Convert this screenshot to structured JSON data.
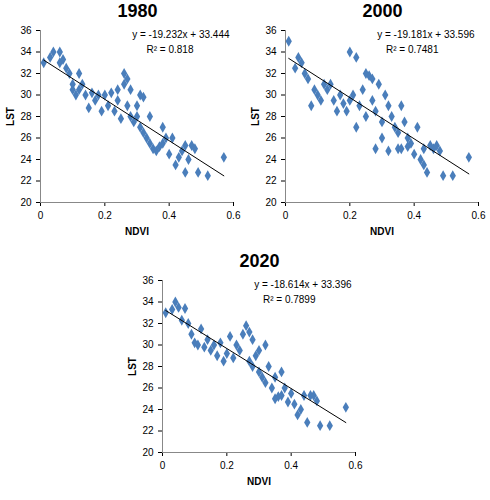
{
  "chart_data": [
    {
      "type": "scatter",
      "title": "1980",
      "x_label": "NDVI",
      "y_label": "LST",
      "color": "#4a7ebb",
      "marker": "diamond",
      "xlim": [
        0,
        0.6
      ],
      "xticks": [
        0,
        0.2,
        0.4,
        0.6
      ],
      "ylim": [
        20,
        36
      ],
      "yticks": [
        20,
        22,
        24,
        26,
        28,
        30,
        32,
        34,
        36
      ],
      "grid": false,
      "x": [
        0.01,
        0.03,
        0.04,
        0.06,
        0.06,
        0.07,
        0.08,
        0.09,
        0.1,
        0.1,
        0.11,
        0.12,
        0.12,
        0.13,
        0.14,
        0.15,
        0.16,
        0.17,
        0.18,
        0.19,
        0.2,
        0.21,
        0.22,
        0.23,
        0.24,
        0.24,
        0.25,
        0.26,
        0.26,
        0.27,
        0.27,
        0.28,
        0.28,
        0.29,
        0.3,
        0.3,
        0.31,
        0.31,
        0.32,
        0.32,
        0.33,
        0.34,
        0.34,
        0.35,
        0.36,
        0.37,
        0.38,
        0.38,
        0.39,
        0.4,
        0.41,
        0.42,
        0.43,
        0.44,
        0.45,
        0.45,
        0.46,
        0.47,
        0.48,
        0.49,
        0.52,
        0.57
      ],
      "values": [
        33,
        33.5,
        34,
        34,
        33,
        33.3,
        32.5,
        32,
        31,
        30.5,
        30,
        32,
        30.5,
        31,
        30,
        28.8,
        30.2,
        29.5,
        30,
        28.5,
        30,
        29,
        30.2,
        28.5,
        29.5,
        30.5,
        27.8,
        31,
        32,
        31.5,
        29,
        28,
        30.5,
        27.5,
        29,
        28,
        30,
        27,
        29.8,
        26.5,
        26,
        28,
        25.5,
        25,
        24.8,
        25.2,
        27,
        25.5,
        26,
        24.5,
        26,
        23.5,
        24.2,
        24.8,
        25.3,
        22.8,
        24,
        25.3,
        25,
        22.8,
        22.5,
        24.2
      ],
      "trendline": {
        "equation": "y = -19.232x + 33.444",
        "r_squared_label": "R² = 0.818",
        "slope": -19.232,
        "intercept": 33.444,
        "color": "#000000"
      }
    },
    {
      "type": "scatter",
      "title": "2000",
      "x_label": "NDVI",
      "y_label": "LST",
      "color": "#4a7ebb",
      "marker": "diamond",
      "xlim": [
        0,
        0.6
      ],
      "xticks": [
        0,
        0.2,
        0.4,
        0.6
      ],
      "ylim": [
        20,
        36
      ],
      "yticks": [
        20,
        22,
        24,
        26,
        28,
        30,
        32,
        34,
        36
      ],
      "grid": false,
      "x": [
        0.01,
        0.03,
        0.04,
        0.05,
        0.06,
        0.07,
        0.08,
        0.09,
        0.1,
        0.11,
        0.12,
        0.13,
        0.14,
        0.15,
        0.16,
        0.17,
        0.18,
        0.19,
        0.2,
        0.2,
        0.21,
        0.22,
        0.22,
        0.23,
        0.24,
        0.25,
        0.25,
        0.26,
        0.27,
        0.27,
        0.28,
        0.28,
        0.29,
        0.3,
        0.3,
        0.31,
        0.32,
        0.32,
        0.33,
        0.34,
        0.35,
        0.35,
        0.36,
        0.36,
        0.37,
        0.38,
        0.38,
        0.39,
        0.4,
        0.41,
        0.42,
        0.43,
        0.43,
        0.44,
        0.45,
        0.46,
        0.47,
        0.48,
        0.49,
        0.52,
        0.57
      ],
      "values": [
        35,
        32.5,
        33.5,
        33,
        32,
        31.5,
        29,
        30.5,
        30,
        29.5,
        31,
        30.5,
        31,
        29.5,
        28.5,
        30,
        29.2,
        28.5,
        34,
        29.5,
        30,
        27,
        33.5,
        29,
        30.5,
        32,
        28,
        31.8,
        31.5,
        29.5,
        28.5,
        25,
        31,
        27.5,
        26,
        30,
        29,
        24.8,
        28,
        27,
        26.5,
        25,
        29,
        25,
        27.5,
        26,
        25.2,
        25.5,
        24.5,
        27,
        24,
        23.5,
        25,
        22.8,
        25.3,
        25,
        25.3,
        24.8,
        22.5,
        22.5,
        24.2
      ],
      "trendline": {
        "equation": "y = -19.181x + 33.596",
        "r_squared_label": "R² = 0.7481",
        "slope": -19.181,
        "intercept": 33.596,
        "color": "#000000"
      }
    },
    {
      "type": "scatter",
      "title": "2020",
      "x_label": "NDVI",
      "y_label": "LST",
      "color": "#4a7ebb",
      "marker": "diamond",
      "xlim": [
        0,
        0.6
      ],
      "xticks": [
        0,
        0.2,
        0.4,
        0.6
      ],
      "ylim": [
        20,
        36
      ],
      "yticks": [
        20,
        22,
        24,
        26,
        28,
        30,
        32,
        34,
        36
      ],
      "grid": false,
      "x": [
        0.01,
        0.03,
        0.04,
        0.05,
        0.06,
        0.07,
        0.08,
        0.09,
        0.1,
        0.11,
        0.12,
        0.13,
        0.14,
        0.15,
        0.16,
        0.17,
        0.18,
        0.19,
        0.2,
        0.21,
        0.22,
        0.23,
        0.24,
        0.25,
        0.26,
        0.27,
        0.27,
        0.28,
        0.28,
        0.29,
        0.3,
        0.3,
        0.31,
        0.32,
        0.32,
        0.33,
        0.34,
        0.35,
        0.35,
        0.36,
        0.37,
        0.37,
        0.38,
        0.39,
        0.4,
        0.41,
        0.42,
        0.43,
        0.44,
        0.45,
        0.46,
        0.47,
        0.48,
        0.49,
        0.52,
        0.57
      ],
      "values": [
        33,
        33.3,
        34,
        33.5,
        32.3,
        33.4,
        32,
        31,
        30.2,
        30,
        31.5,
        29.8,
        30.5,
        29.5,
        30,
        29,
        30.2,
        28.5,
        29.2,
        30.8,
        28.8,
        30,
        29.5,
        31,
        31.8,
        31.2,
        28.5,
        30.5,
        28,
        29,
        27.5,
        29.5,
        27,
        30,
        26.5,
        28,
        26,
        27,
        25,
        25.2,
        27.5,
        25.3,
        26,
        24.7,
        25.5,
        24.5,
        23.5,
        24,
        25.3,
        22.8,
        25.3,
        25.3,
        24.8,
        22.5,
        22.5,
        24.2
      ],
      "trendline": {
        "equation": "y = -18.614x + 33.396",
        "r_squared_label": "R² = 0.7899",
        "slope": -18.614,
        "intercept": 33.396,
        "color": "#000000"
      }
    }
  ]
}
